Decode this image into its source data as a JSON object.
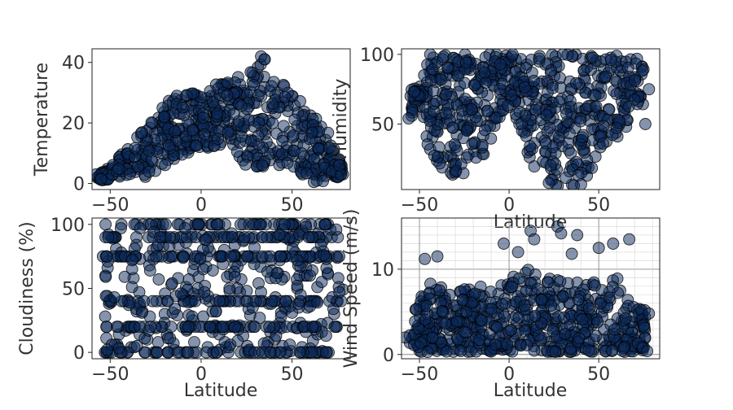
{
  "figure": {
    "marker_color": "#0b2a5a",
    "marker_edge_color": "#000000",
    "marker_alpha": 0.5
  },
  "chart_data": [
    {
      "id": "temperature",
      "type": "scatter",
      "xlabel": "",
      "ylabel": "Temperature",
      "xlim": [
        -60,
        82
      ],
      "ylim": [
        -2,
        44.5
      ],
      "xticks": [
        -50,
        0,
        50
      ],
      "yticks": [
        0,
        20,
        40
      ],
      "grid": false,
      "profile": [
        {
          "x": -57,
          "lo": 1,
          "hi": 3
        },
        {
          "x": -50,
          "lo": 1,
          "hi": 7
        },
        {
          "x": -45,
          "lo": 1,
          "hi": 10
        },
        {
          "x": -40,
          "lo": 2,
          "hi": 13
        },
        {
          "x": -35,
          "lo": 2,
          "hi": 16
        },
        {
          "x": -30,
          "lo": 2,
          "hi": 19
        },
        {
          "x": -25,
          "lo": 4,
          "hi": 22
        },
        {
          "x": -20,
          "lo": 6,
          "hi": 26
        },
        {
          "x": -15,
          "lo": 8,
          "hi": 29
        },
        {
          "x": -10,
          "lo": 9,
          "hi": 29
        },
        {
          "x": -5,
          "lo": 11,
          "hi": 30
        },
        {
          "x": 0,
          "lo": 11,
          "hi": 30
        },
        {
          "x": 5,
          "lo": 12,
          "hi": 31
        },
        {
          "x": 10,
          "lo": 12,
          "hi": 34
        },
        {
          "x": 15,
          "lo": 16,
          "hi": 35
        },
        {
          "x": 20,
          "lo": 10,
          "hi": 36
        },
        {
          "x": 25,
          "lo": 5,
          "hi": 38
        },
        {
          "x": 30,
          "lo": 5,
          "hi": 40
        },
        {
          "x": 35,
          "lo": 5,
          "hi": 42
        },
        {
          "x": 40,
          "lo": 6,
          "hi": 35
        },
        {
          "x": 45,
          "lo": 5,
          "hi": 33
        },
        {
          "x": 50,
          "lo": 5,
          "hi": 30
        },
        {
          "x": 55,
          "lo": 3,
          "hi": 27
        },
        {
          "x": 60,
          "lo": 2,
          "hi": 24
        },
        {
          "x": 65,
          "lo": 0,
          "hi": 22
        },
        {
          "x": 70,
          "lo": 1,
          "hi": 17
        },
        {
          "x": 75,
          "lo": 2,
          "hi": 9
        },
        {
          "x": 78,
          "lo": 3,
          "hi": 6
        }
      ],
      "n_points": 560,
      "extra_points": [
        {
          "x": -58,
          "y": 3
        },
        {
          "x": -55,
          "y": 1.5
        },
        {
          "x": 77,
          "y": 3
        },
        {
          "x": 76,
          "y": 6
        },
        {
          "x": 33,
          "y": 42
        },
        {
          "x": 35,
          "y": 41
        },
        {
          "x": 62,
          "y": 0.5
        },
        {
          "x": 67,
          "y": 0.8
        }
      ]
    },
    {
      "id": "humidity",
      "type": "scatter",
      "xlabel": "Latitude",
      "ylabel": "Humidity",
      "xlim": [
        -60,
        84
      ],
      "ylim": [
        3,
        104
      ],
      "xticks": [
        -50,
        0,
        50
      ],
      "yticks": [
        50,
        100
      ],
      "grid": false,
      "profile": [
        {
          "x": -55,
          "lo": 52,
          "hi": 76
        },
        {
          "x": -50,
          "lo": 60,
          "hi": 76
        },
        {
          "x": -45,
          "lo": 30,
          "hi": 100
        },
        {
          "x": -40,
          "lo": 20,
          "hi": 100
        },
        {
          "x": -35,
          "lo": 15,
          "hi": 100
        },
        {
          "x": -30,
          "lo": 12,
          "hi": 100
        },
        {
          "x": -25,
          "lo": 10,
          "hi": 100
        },
        {
          "x": -20,
          "lo": 15,
          "hi": 100
        },
        {
          "x": -15,
          "lo": 25,
          "hi": 100
        },
        {
          "x": -10,
          "lo": 40,
          "hi": 100
        },
        {
          "x": -5,
          "lo": 55,
          "hi": 100
        },
        {
          "x": 0,
          "lo": 60,
          "hi": 100
        },
        {
          "x": 5,
          "lo": 50,
          "hi": 100
        },
        {
          "x": 10,
          "lo": 30,
          "hi": 100
        },
        {
          "x": 15,
          "lo": 15,
          "hi": 100
        },
        {
          "x": 20,
          "lo": 8,
          "hi": 100
        },
        {
          "x": 25,
          "lo": 6,
          "hi": 100
        },
        {
          "x": 30,
          "lo": 5,
          "hi": 100
        },
        {
          "x": 35,
          "lo": 5,
          "hi": 100
        },
        {
          "x": 40,
          "lo": 6,
          "hi": 100
        },
        {
          "x": 45,
          "lo": 15,
          "hi": 100
        },
        {
          "x": 50,
          "lo": 25,
          "hi": 100
        },
        {
          "x": 55,
          "lo": 35,
          "hi": 100
        },
        {
          "x": 60,
          "lo": 40,
          "hi": 100
        },
        {
          "x": 65,
          "lo": 45,
          "hi": 100
        },
        {
          "x": 70,
          "lo": 60,
          "hi": 100
        },
        {
          "x": 75,
          "lo": 62,
          "hi": 90
        }
      ],
      "n_points": 620,
      "extra_points": [
        {
          "x": -56,
          "y": 54
        },
        {
          "x": -53,
          "y": 73
        },
        {
          "x": 78,
          "y": 75
        },
        {
          "x": 76,
          "y": 50
        },
        {
          "x": 2,
          "y": 100
        },
        {
          "x": 30,
          "y": 100
        },
        {
          "x": -44,
          "y": 100
        }
      ]
    },
    {
      "id": "cloudiness",
      "type": "scatter",
      "xlabel": "Latitude",
      "ylabel": "Cloudiness (%)",
      "xlim": [
        -60,
        82
      ],
      "ylim": [
        -5,
        105
      ],
      "xticks": [
        -50,
        0,
        50
      ],
      "yticks": [
        0,
        50,
        100
      ],
      "grid": false,
      "x_range": [
        -53,
        76
      ],
      "banded_levels": [
        0,
        20,
        40,
        75,
        90,
        100
      ],
      "n_points": 640,
      "extra_points": [
        {
          "x": -54,
          "y": 75
        },
        {
          "x": -52,
          "y": 75
        },
        {
          "x": 77,
          "y": 40
        },
        {
          "x": 78,
          "y": 49
        },
        {
          "x": 76,
          "y": 47
        }
      ]
    },
    {
      "id": "wind_speed",
      "type": "scatter",
      "xlabel": "Latitude",
      "ylabel": "Wind Speed (m/s)",
      "xlim": [
        -60,
        84
      ],
      "ylim": [
        -0.5,
        16
      ],
      "xticks": [
        -50,
        0,
        50
      ],
      "yticks": [
        0,
        10
      ],
      "grid": true,
      "profile": [
        {
          "x": -56,
          "lo": 1.5,
          "hi": 3
        },
        {
          "x": -50,
          "lo": 0.3,
          "hi": 7
        },
        {
          "x": -45,
          "lo": 0.3,
          "hi": 9
        },
        {
          "x": -40,
          "lo": 0.3,
          "hi": 8
        },
        {
          "x": -30,
          "lo": 0.3,
          "hi": 8
        },
        {
          "x": -20,
          "lo": 0.3,
          "hi": 8
        },
        {
          "x": -10,
          "lo": 0.3,
          "hi": 8
        },
        {
          "x": 0,
          "lo": 0.3,
          "hi": 9
        },
        {
          "x": 10,
          "lo": 0.3,
          "hi": 10
        },
        {
          "x": 20,
          "lo": 0.3,
          "hi": 9
        },
        {
          "x": 30,
          "lo": 0.3,
          "hi": 9
        },
        {
          "x": 40,
          "lo": 0.3,
          "hi": 8.5
        },
        {
          "x": 50,
          "lo": 0.3,
          "hi": 8.5
        },
        {
          "x": 60,
          "lo": 0.3,
          "hi": 9
        },
        {
          "x": 70,
          "lo": 0.3,
          "hi": 8
        },
        {
          "x": 76,
          "lo": 0.3,
          "hi": 5
        }
      ],
      "n_points": 600,
      "extra_points": [
        {
          "x": 12,
          "y": 14.5
        },
        {
          "x": 27,
          "y": 15
        },
        {
          "x": 29,
          "y": 14.2
        },
        {
          "x": 38,
          "y": 14
        },
        {
          "x": 14,
          "y": 13.5
        },
        {
          "x": 58,
          "y": 13
        },
        {
          "x": 67,
          "y": 13.5
        },
        {
          "x": -3,
          "y": 13
        },
        {
          "x": 50,
          "y": 12.5
        },
        {
          "x": -47,
          "y": 11.2
        },
        {
          "x": -40,
          "y": 11.5
        },
        {
          "x": 5,
          "y": 12
        },
        {
          "x": 35,
          "y": 11.8
        },
        {
          "x": 78,
          "y": 4.8
        },
        {
          "x": 77,
          "y": 0.4
        },
        {
          "x": -58,
          "y": 2
        }
      ]
    }
  ]
}
